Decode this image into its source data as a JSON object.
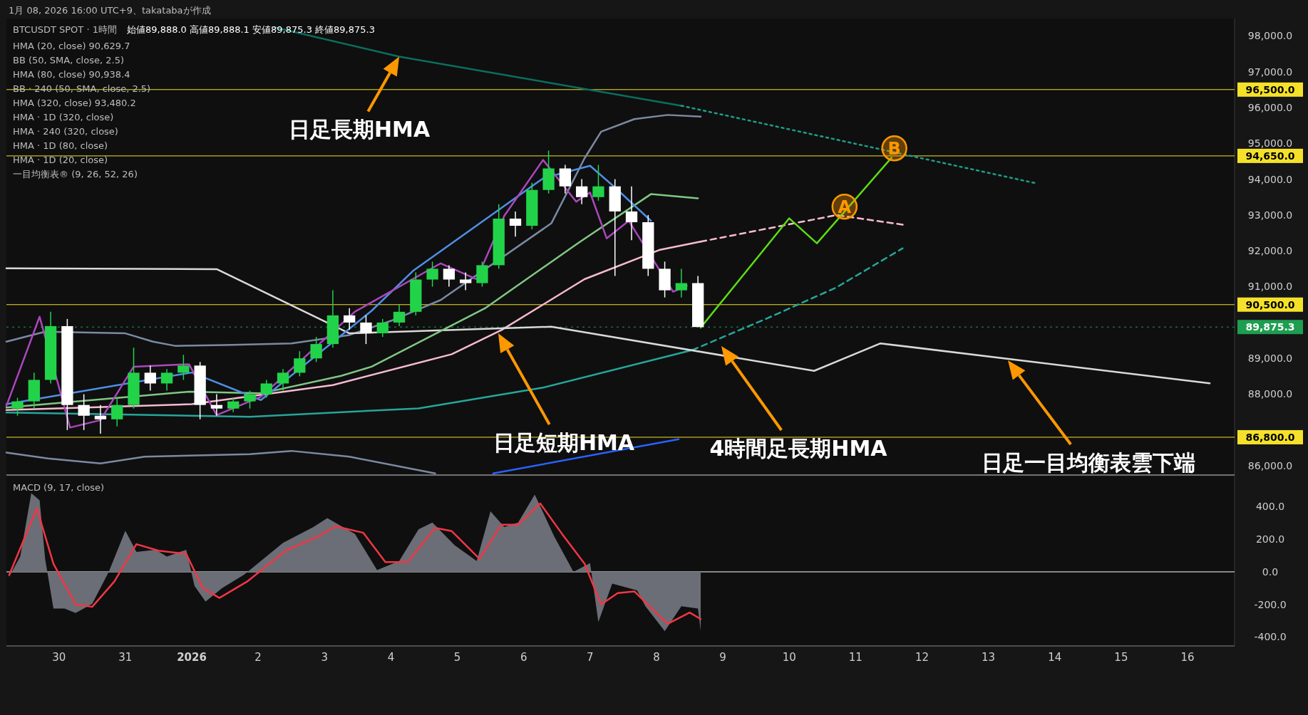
{
  "chart_data": [
    {
      "type": "candlestick",
      "title": "BTCUSDT SPOT · 1時間",
      "subtitle": "1月 08, 2026 16:00 UTC+9、takatabaが作成",
      "annotations": [
        {
          "text": "日足長期HMA",
          "x": "2026-01-04T03:00",
          "y": 97420
        },
        {
          "text": "A",
          "x": "2026-01-10T20:00",
          "y": 93234
        },
        {
          "text": "B",
          "x": "2026-01-11T14:00",
          "y": 94862
        },
        "始値89,888.0  高値89,888.1  安値89,875.3  終値89,875.3",
        "HMA (20, close)  90,629.7",
        "BB (50, SMA, close, 2.5)",
        "HMA (80, close)  90,938.4",
        "BB · 240 (50, SMA, close, 2.5)",
        "HMA (320, close)  93,480.2",
        "HMA · 1D (320, close)",
        "HMA · 240 (320, close)",
        "HMA · 1D (80, close)",
        "HMA · 1D (20, close)",
        "一目均衡表® (9, 26, 52, 26)",
        "日足短期HMA",
        "4時間足長期HMA",
        "日足一目均衡表雲下端"
      ],
      "x": [
        "2025-12-29T09:00",
        "2025-12-29T15:00",
        "2025-12-29T21:00",
        "2025-12-30T03:00",
        "2025-12-30T09:00",
        "2025-12-30T15:00",
        "2025-12-30T21:00",
        "2025-12-31T03:00",
        "2025-12-31T09:00",
        "2025-12-31T15:00",
        "2025-12-31T21:00",
        "2026-01-01T03:00",
        "2026-01-01T09:00",
        "2026-01-01T15:00",
        "2026-01-01T21:00",
        "2026-01-02T03:00",
        "2026-01-02T09:00",
        "2026-01-02T15:00",
        "2026-01-02T21:00",
        "2026-01-03T03:00",
        "2026-01-03T09:00",
        "2026-01-03T15:00",
        "2026-01-03T21:00",
        "2026-01-04T03:00",
        "2026-01-04T09:00",
        "2026-01-04T15:00",
        "2026-01-04T21:00",
        "2026-01-05T03:00",
        "2026-01-05T09:00",
        "2026-01-05T15:00",
        "2026-01-05T21:00",
        "2026-01-06T03:00",
        "2026-01-06T09:00",
        "2026-01-06T15:00",
        "2026-01-06T21:00",
        "2026-01-07T03:00",
        "2026-01-07T09:00",
        "2026-01-07T15:00",
        "2026-01-07T21:00",
        "2026-01-08T03:00",
        "2026-01-08T09:00",
        "2026-01-08T15:00"
      ],
      "ohlc": [
        [
          87600,
          87900,
          87400,
          87800
        ],
        [
          87800,
          88600,
          87600,
          88400
        ],
        [
          88400,
          90300,
          88300,
          89900
        ],
        [
          89900,
          90100,
          87000,
          87700
        ],
        [
          87700,
          88000,
          87000,
          87400
        ],
        [
          87400,
          87700,
          86900,
          87300
        ],
        [
          87300,
          87900,
          87100,
          87700
        ],
        [
          87700,
          89300,
          87600,
          88600
        ],
        [
          88600,
          88800,
          88100,
          88300
        ],
        [
          88300,
          88700,
          88100,
          88600
        ],
        [
          88600,
          89100,
          88400,
          88800
        ],
        [
          88800,
          88900,
          87300,
          87700
        ],
        [
          87700,
          88000,
          87400,
          87600
        ],
        [
          87600,
          87900,
          87500,
          87800
        ],
        [
          87800,
          88100,
          87600,
          88000
        ],
        [
          88000,
          88400,
          87900,
          88300
        ],
        [
          88300,
          88700,
          88100,
          88600
        ],
        [
          88600,
          89200,
          88500,
          89000
        ],
        [
          89000,
          89600,
          88900,
          89400
        ],
        [
          89400,
          90900,
          89300,
          90200
        ],
        [
          90200,
          90400,
          89800,
          90000
        ],
        [
          90000,
          90200,
          89400,
          89700
        ],
        [
          89700,
          90100,
          89600,
          90000
        ],
        [
          90000,
          90500,
          89900,
          90300
        ],
        [
          90300,
          91400,
          90200,
          91200
        ],
        [
          91200,
          91700,
          91000,
          91500
        ],
        [
          91500,
          91600,
          91000,
          91200
        ],
        [
          91200,
          91400,
          90900,
          91100
        ],
        [
          91100,
          91700,
          91000,
          91600
        ],
        [
          91600,
          93300,
          91500,
          92900
        ],
        [
          92900,
          93100,
          92400,
          92700
        ],
        [
          92700,
          93900,
          92600,
          93700
        ],
        [
          93700,
          94800,
          93600,
          94300
        ],
        [
          94300,
          94400,
          93600,
          93800
        ],
        [
          93800,
          94000,
          93300,
          93500
        ],
        [
          93500,
          94400,
          93400,
          93800
        ],
        [
          93800,
          94000,
          91300,
          93100
        ],
        [
          93100,
          93800,
          92300,
          92800
        ],
        [
          92800,
          93000,
          91300,
          91500
        ],
        [
          91500,
          91700,
          90700,
          90900
        ],
        [
          90900,
          91500,
          90700,
          91100
        ],
        [
          91100,
          91300,
          89875.3,
          89875.3
        ]
      ],
      "colors": [
        "#22d34a",
        "#22d34a",
        "#22d34a",
        "#ffffff",
        "#ffffff",
        "#ffffff",
        "#22d34a",
        "#22d34a",
        "#ffffff",
        "#22d34a",
        "#22d34a",
        "#ffffff",
        "#ffffff",
        "#22d34a",
        "#22d34a",
        "#22d34a",
        "#22d34a",
        "#22d34a",
        "#22d34a",
        "#22d34a",
        "#ffffff",
        "#ffffff",
        "#22d34a",
        "#22d34a",
        "#22d34a",
        "#22d34a",
        "#ffffff",
        "#ffffff",
        "#22d34a",
        "#22d34a",
        "#ffffff",
        "#22d34a",
        "#22d34a",
        "#ffffff",
        "#ffffff",
        "#22d34a",
        "#ffffff",
        "#ffffff",
        "#ffffff",
        "#ffffff",
        "#22d34a",
        "#ffffff"
      ],
      "series": [
        {
          "type": "line",
          "color": "#0b6e5f",
          "x": [
            "2026-01-02T06:00",
            "2026-01-04T03:00",
            "2026-01-08T09:00"
          ],
          "values": [
            98235,
            97420,
            96050
          ]
        },
        {
          "type": "line",
          "color": "#1f9c88",
          "line_style": "dotted",
          "x": [
            "2026-01-08T09:00",
            "2026-01-13T17:00"
          ],
          "values": [
            96050,
            93890
          ]
        },
        {
          "type": "line",
          "color": "#7b8aa3",
          "x": [
            "2025-12-29T05:00",
            "2025-12-29T19:00",
            "2025-12-31T00:00",
            "2025-12-31T10:00",
            "2025-12-31T18:00",
            "2026-01-01T12:00",
            "2026-01-02T12:00",
            "2026-01-03T09:00",
            "2026-01-04T00:00",
            "2026-01-04T18:00",
            "2026-01-06T10:00",
            "2026-01-06T22:00",
            "2026-01-07T04:00",
            "2026-01-07T16:00",
            "2026-01-08T04:00",
            "2026-01-08T16:00"
          ],
          "values": [
            89466,
            89745,
            89698,
            89466,
            89350,
            89373,
            89419,
            89652,
            90047,
            90629,
            92769,
            94583,
            95327,
            95676,
            95793,
            95746
          ]
        },
        {
          "type": "line",
          "color": "#7b8aa3",
          "x": [
            "2025-12-29T05:00",
            "2025-12-29T20:00",
            "2025-12-30T15:00",
            "2025-12-31T07:00",
            "2026-01-01T21:00",
            "2026-01-02T12:00",
            "2026-01-03T09:00",
            "2026-01-04T16:00"
          ],
          "values": [
            86372,
            86209,
            86070,
            86256,
            86326,
            86419,
            86256,
            85791
          ]
        },
        {
          "type": "line",
          "color": "#f8bbd0",
          "x": [
            "2025-12-29T05:00",
            "2026-01-01T00:00",
            "2026-01-03T03:00",
            "2026-01-04T22:00",
            "2026-01-05T16:00",
            "2026-01-06T22:00",
            "2026-01-08T01:00",
            "2026-01-08T16:00"
          ],
          "values": [
            87558,
            87721,
            88256,
            89117,
            89791,
            91210,
            92024,
            92257
          ]
        },
        {
          "type": "line",
          "color": "#f8bbd0",
          "line_style": "dashed",
          "x": [
            "2026-01-08T16:00",
            "2026-01-10T17:00",
            "2026-01-11T18:00"
          ],
          "values": [
            92257,
            92999,
            92720
          ]
        },
        {
          "type": "line",
          "color": "#26a69a",
          "x": [
            "2025-12-29T05:00",
            "2026-01-01T21:00",
            "2026-01-04T10:00",
            "2026-01-06T07:00",
            "2026-01-08T13:00"
          ],
          "values": [
            87489,
            87372,
            87605,
            88186,
            89233
          ]
        },
        {
          "type": "line",
          "color": "#26a69a",
          "line_style": "dashed",
          "x": [
            "2026-01-08T13:00",
            "2026-01-09T16:00",
            "2026-01-10T17:00",
            "2026-01-11T17:00"
          ],
          "values": [
            89233,
            90117,
            90978,
            92071
          ]
        },
        {
          "type": "line",
          "color": "#d9d9d9",
          "x": [
            "2025-12-29T05:00",
            "2026-01-01T09:00",
            "2026-01-03T09:00",
            "2026-01-06T10:00",
            "2026-01-10T09:00",
            "2026-01-11T09:00",
            "2026-01-16T08:00"
          ],
          "values": [
            91512,
            91489,
            89698,
            89884,
            88652,
            89419,
            88303
          ]
        },
        {
          "type": "line",
          "color": "#2962ff",
          "x": [
            "2026-01-05T13:00",
            "2026-01-08T08:00"
          ],
          "values": [
            85791,
            86744
          ]
        },
        {
          "type": "line",
          "color": "#81c784",
          "x": [
            "2025-12-29T05:00",
            "2025-12-31T23:00",
            "2026-01-02T01:00",
            "2026-01-03T06:00",
            "2026-01-03T17:00",
            "2026-01-05T10:00",
            "2026-01-06T20:00",
            "2026-01-07T22:00",
            "2026-01-08T15:00"
          ],
          "values": [
            87628,
            88070,
            88024,
            88512,
            88768,
            90396,
            92234,
            93583,
            93466
          ]
        },
        {
          "type": "line",
          "color": "#4f8fe6",
          "x": [
            "2025-12-29T05:00",
            "2026-01-01T00:00",
            "2026-01-02T01:00",
            "2026-01-03T17:00",
            "2026-01-04T08:00",
            "2026-01-06T07:00",
            "2026-01-07T00:00",
            "2026-01-07T09:00",
            "2026-01-07T22:00"
          ],
          "values": [
            87721,
            88605,
            87837,
            90326,
            91443,
            94024,
            94374,
            93769,
            92839
          ]
        },
        {
          "type": "line",
          "color": "#ab47bc",
          "x": [
            "2025-12-29T05:00",
            "2025-12-29T17:00",
            "2025-12-30T04:00",
            "2025-12-30T15:00",
            "2025-12-31T03:00",
            "2025-12-31T23:00",
            "2026-01-01T09:00",
            "2026-01-02T01:00",
            "2026-01-03T11:00",
            "2026-01-04T18:00",
            "2026-01-05T07:00",
            "2026-01-05T17:00",
            "2026-01-06T07:00",
            "2026-01-06T19:00",
            "2026-01-07T00:00",
            "2026-01-07T06:00",
            "2026-01-07T14:00",
            "2026-01-08T06:00",
            "2026-01-08T11:00"
          ],
          "values": [
            87675,
            90163,
            87070,
            87279,
            88768,
            88838,
            87419,
            87930,
            90303,
            91652,
            91210,
            92978,
            94536,
            93373,
            93629,
            92350,
            92839,
            90861,
            91024
          ]
        },
        {
          "type": "line",
          "color": "#5ddc14",
          "x": [
            "2026-01-08T16:00",
            "2026-01-10T00:00",
            "2026-01-10T10:00",
            "2026-01-11T13:00"
          ],
          "values": [
            89861,
            92908,
            92210,
            94600
          ]
        }
      ],
      "ref_lines": [
        {
          "axis": "y",
          "value": 96500,
          "label": "96,500.0",
          "color": "#f5e12a"
        },
        {
          "axis": "y",
          "value": 94650,
          "label": "94,650.0",
          "color": "#f5e12a"
        },
        {
          "axis": "y",
          "value": 90500,
          "label": "90,500.0",
          "color": "#f5e12a"
        },
        {
          "axis": "y",
          "value": 86800,
          "label": "86,800.0",
          "color": "#f5e12a"
        },
        {
          "axis": "y",
          "value": 89875.3,
          "label": "89,875.3",
          "color": "#1e9e50",
          "line_style": "dotted"
        }
      ],
      "xlim": [
        "2025-12-29T05:00",
        "2026-01-16T17:00"
      ],
      "ylim": [
        85746,
        98483
      ],
      "yticks": [
        {
          "value": 86000,
          "label": "86,000.0"
        },
        {
          "value": 88000,
          "label": "88,000.0"
        },
        {
          "value": 89000,
          "label": "89,000.0"
        },
        {
          "value": 91000,
          "label": "91,000.0"
        },
        {
          "value": 92000,
          "label": "92,000.0"
        },
        {
          "value": 93000,
          "label": "93,000.0"
        },
        {
          "value": 94000,
          "label": "94,000.0"
        },
        {
          "value": 95000,
          "label": "95,000.0"
        },
        {
          "value": 96000,
          "label": "96,000.0"
        },
        {
          "value": 97000,
          "label": "97,000.0"
        },
        {
          "value": 98000,
          "label": "98,000.0"
        }
      ],
      "tick_labels": "y"
    },
    {
      "type": "area",
      "title": "MACD (9, 17, close)",
      "series": [
        {
          "type": "area",
          "color": "#6b6e76",
          "x": [
            "2025-12-29T06:00",
            "2025-12-29T10:00",
            "2025-12-29T14:00",
            "2025-12-29T17:00",
            "2025-12-29T19:00",
            "2025-12-29T22:00",
            "2025-12-30T02:00",
            "2025-12-30T06:00",
            "2025-12-30T12:00",
            "2025-12-30T18:00",
            "2025-12-31T00:00",
            "2025-12-31T04:00",
            "2025-12-31T11:00",
            "2025-12-31T15:00",
            "2025-12-31T22:00",
            "2026-01-01T01:00",
            "2026-01-01T05:00",
            "2026-01-01T11:00",
            "2026-01-01T19:00",
            "2026-01-02T09:00",
            "2026-01-02T20:00",
            "2026-01-03T01:00",
            "2026-01-03T11:00",
            "2026-01-03T19:00",
            "2026-01-04T03:00",
            "2026-01-04T10:00",
            "2026-01-04T15:00",
            "2026-01-04T23:00",
            "2026-01-05T07:00",
            "2026-01-05T12:00",
            "2026-01-05T17:00",
            "2026-01-05T22:00",
            "2026-01-06T04:00",
            "2026-01-06T11:00",
            "2026-01-06T18:00",
            "2026-01-07T00:00",
            "2026-01-07T03:00",
            "2026-01-07T08:00",
            "2026-01-07T17:00",
            "2026-01-07T20:00",
            "2026-01-08T03:00",
            "2026-01-08T09:00",
            "2026-01-08T15:00",
            "2026-01-08T16:00"
          ],
          "values": [
            -30,
            94,
            483,
            440,
            80,
            -225,
            -225,
            -253,
            -197,
            0,
            253,
            122,
            136,
            94,
            136,
            -86,
            -183,
            -100,
            -17,
            178,
            275,
            330,
            233,
            11,
            67,
            261,
            303,
            164,
            67,
            372,
            275,
            303,
            475,
            219,
            0,
            53,
            -308,
            -72,
            -114,
            -211,
            -364,
            -211,
            -225,
            -364
          ]
        },
        {
          "type": "line",
          "color": "#f23645",
          "x": [
            "2025-12-29T06:00",
            "2025-12-29T16:00",
            "2025-12-29T22:00",
            "2025-12-30T06:00",
            "2025-12-30T12:00",
            "2025-12-30T20:00",
            "2025-12-31T04:00",
            "2025-12-31T12:00",
            "2025-12-31T22:00",
            "2026-01-01T04:00",
            "2026-01-01T10:00",
            "2026-01-01T20:00",
            "2026-01-02T10:00",
            "2026-01-02T22:00",
            "2026-01-03T04:00",
            "2026-01-03T14:00",
            "2026-01-03T22:00",
            "2026-01-04T06:00",
            "2026-01-04T16:00",
            "2026-01-04T22:00",
            "2026-01-05T08:00",
            "2026-01-05T16:00",
            "2026-01-05T22:00",
            "2026-01-06T06:00",
            "2026-01-06T14:00",
            "2026-01-06T22:00",
            "2026-01-07T04:00",
            "2026-01-07T10:00",
            "2026-01-07T16:00",
            "2026-01-08T04:00",
            "2026-01-08T12:00",
            "2026-01-08T16:00"
          ],
          "values": [
            -20,
            390,
            50,
            -200,
            -215,
            -60,
            170,
            130,
            110,
            -100,
            -160,
            -60,
            130,
            220,
            280,
            240,
            60,
            60,
            270,
            250,
            80,
            290,
            290,
            420,
            230,
            50,
            -200,
            -130,
            -120,
            -320,
            -250,
            -290
          ]
        }
      ],
      "ref_lines": [
        {
          "axis": "y",
          "value": 0,
          "color": "#ffffff"
        }
      ],
      "xlim": [
        "2025-12-29T05:00",
        "2026-01-16T17:00"
      ],
      "xticks": [
        {
          "value": "2025-12-30",
          "label": "30"
        },
        {
          "value": "2025-12-31",
          "label": "31"
        },
        {
          "value": "2026-01-01",
          "label": "2026"
        },
        {
          "value": "2026-01-02",
          "label": "2"
        },
        {
          "value": "2026-01-03",
          "label": "3"
        },
        {
          "value": "2026-01-04",
          "label": "4"
        },
        {
          "value": "2026-01-05",
          "label": "5"
        },
        {
          "value": "2026-01-06",
          "label": "6"
        },
        {
          "value": "2026-01-07",
          "label": "7"
        },
        {
          "value": "2026-01-08",
          "label": "8"
        },
        {
          "value": "2026-01-09",
          "label": "9"
        },
        {
          "value": "2026-01-10",
          "label": "10"
        },
        {
          "value": "2026-01-11",
          "label": "11"
        },
        {
          "value": "2026-01-12",
          "label": "12"
        },
        {
          "value": "2026-01-13",
          "label": "13"
        },
        {
          "value": "2026-01-14",
          "label": "14"
        },
        {
          "value": "2026-01-15",
          "label": "15"
        },
        {
          "value": "2026-01-16",
          "label": "16"
        }
      ],
      "ylim": [
        -455,
        586
      ],
      "yticks": [
        {
          "value": -400,
          "label": "-400.0"
        },
        {
          "value": -200,
          "label": "-200.0"
        },
        {
          "value": 0,
          "label": "0.0"
        },
        {
          "value": 200,
          "label": "200.0"
        },
        {
          "value": 400,
          "label": "400.0"
        }
      ]
    }
  ]
}
